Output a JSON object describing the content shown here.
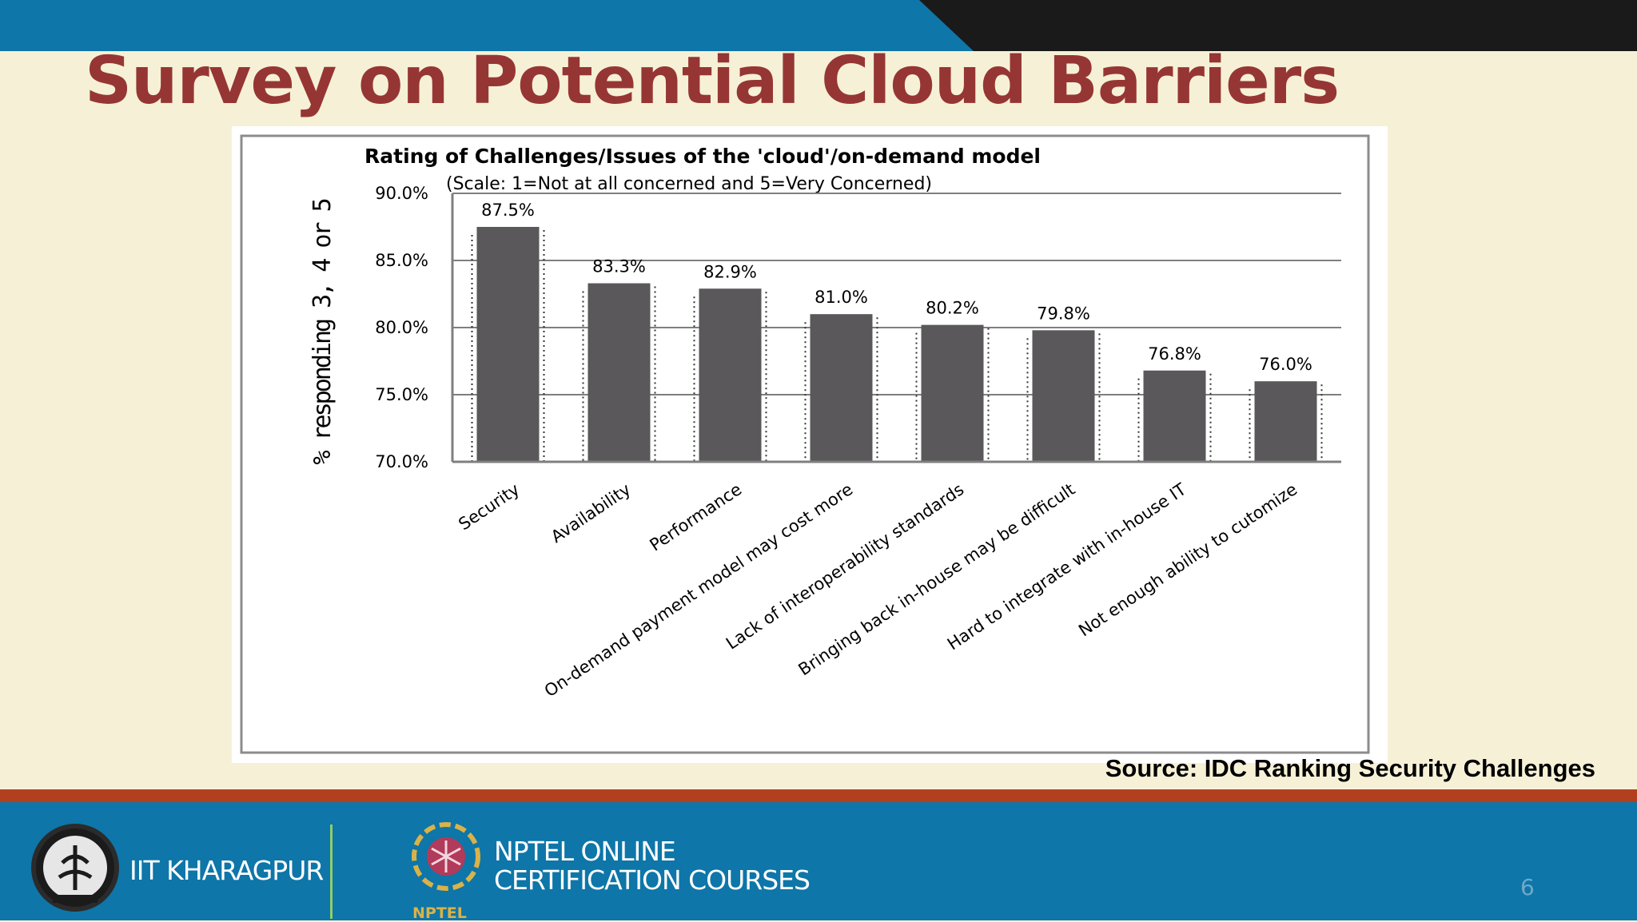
{
  "slide": {
    "title": "Survey on Potential Cloud Barriers",
    "source": "Source:  IDC Ranking Security Challenges",
    "page_number": "6"
  },
  "footer": {
    "institute": "IIT KHARAGPUR",
    "program_line1": "NPTEL ONLINE",
    "program_line2": "CERTIFICATION COURSES",
    "program_short": "NPTEL"
  },
  "colors": {
    "top_bar_blue": "#0e76a8",
    "top_bar_dark": "#1a1a1a",
    "title": "#963634",
    "footer_blue": "#0e76a8",
    "footer_stripe": "#b2401f",
    "bar": "#5a585a"
  },
  "chart_data": {
    "type": "bar",
    "title": "Rating of Challenges/Issues of the 'cloud'/on-demand model",
    "subtitle": "(Scale: 1=Not at all concerned and  5=Very Concerned)",
    "xlabel": "",
    "ylabel": "% responding 3, 4 or 5",
    "ylim": [
      70,
      90
    ],
    "yticks": [
      "70.0%",
      "75.0%",
      "80.0%",
      "85.0%",
      "90.0%"
    ],
    "grid": true,
    "categories": [
      "Security",
      "Availability",
      "Performance",
      "On-demand payment model may cost more",
      "Lack of interoperability standards",
      "Bringing back in-house may be difficult",
      "Hard to integrate with in-house IT",
      "Not enough ability to cutomize"
    ],
    "values": [
      87.5,
      83.3,
      82.9,
      81.0,
      80.2,
      79.8,
      76.8,
      76.0
    ],
    "data_labels": [
      "87.5%",
      "83.3%",
      "82.9%",
      "81.0%",
      "80.2%",
      "79.8%",
      "76.8%",
      "76.0%"
    ]
  }
}
